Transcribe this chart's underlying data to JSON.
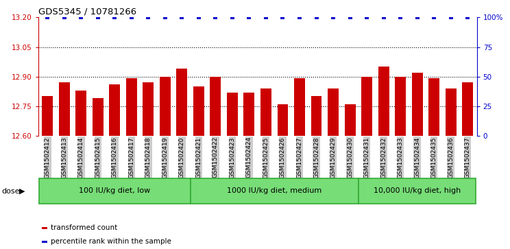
{
  "title": "GDS5345 / 10781266",
  "categories": [
    "GSM1502412",
    "GSM1502413",
    "GSM1502414",
    "GSM1502415",
    "GSM1502416",
    "GSM1502417",
    "GSM1502418",
    "GSM1502419",
    "GSM1502420",
    "GSM1502421",
    "GSM1502422",
    "GSM1502423",
    "GSM1502424",
    "GSM1502425",
    "GSM1502426",
    "GSM1502427",
    "GSM1502428",
    "GSM1502429",
    "GSM1502430",
    "GSM1502431",
    "GSM1502432",
    "GSM1502433",
    "GSM1502434",
    "GSM1502435",
    "GSM1502436",
    "GSM1502437"
  ],
  "values": [
    12.8,
    12.87,
    12.83,
    12.79,
    12.86,
    12.89,
    12.87,
    12.9,
    12.94,
    12.85,
    12.9,
    12.82,
    12.82,
    12.84,
    12.76,
    12.89,
    12.8,
    12.84,
    12.76,
    12.9,
    12.95,
    12.9,
    12.92,
    12.89,
    12.84,
    12.87
  ],
  "percentile_values": [
    100,
    100,
    100,
    100,
    100,
    100,
    100,
    100,
    100,
    100,
    100,
    100,
    100,
    100,
    100,
    100,
    100,
    100,
    100,
    100,
    100,
    100,
    100,
    100,
    100,
    100
  ],
  "bar_color": "#cc0000",
  "percentile_color": "#0000cc",
  "ylim": [
    12.6,
    13.2
  ],
  "yticks_left": [
    12.6,
    12.75,
    12.9,
    13.05,
    13.2
  ],
  "yticks_right": [
    0,
    25,
    50,
    75,
    100
  ],
  "right_ylim": [
    0,
    100
  ],
  "dotted_lines": [
    12.75,
    12.9,
    13.05
  ],
  "groups": [
    {
      "label": "100 IU/kg diet, low",
      "start": 0,
      "end": 8
    },
    {
      "label": "1000 IU/kg diet, medium",
      "start": 9,
      "end": 18
    },
    {
      "label": "10,000 IU/kg diet, high",
      "start": 19,
      "end": 25
    }
  ],
  "group_face_color": "#77dd77",
  "group_edge_color": "#33aa33",
  "left_axis_color": "#cc0000",
  "right_axis_color": "#0000cc",
  "legend_items": [
    {
      "label": "transformed count",
      "color": "#cc0000"
    },
    {
      "label": "percentile rank within the sample",
      "color": "#0000cc"
    }
  ],
  "xtick_bg": "#cccccc",
  "plot_bg": "#ffffff",
  "title_fontsize": 9.5,
  "bar_label_fontsize": 6.5,
  "group_label_fontsize": 8,
  "legend_fontsize": 7.5,
  "ytick_fontsize": 7.5
}
